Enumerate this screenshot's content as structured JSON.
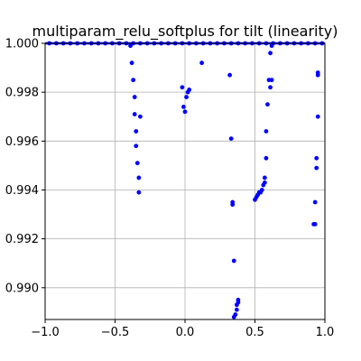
{
  "chart_data": {
    "type": "scatter",
    "title": "multiparam_relu_softplus for tilt (linearity)",
    "xlabel": "",
    "ylabel": "",
    "xlim": [
      -1.0,
      1.0
    ],
    "ylim": [
      0.9887,
      1.0
    ],
    "xticks": [
      -1.0,
      -0.5,
      0.0,
      0.5,
      1.0
    ],
    "xtick_labels": [
      "−1.0",
      "−0.5",
      "0.0",
      "0.5",
      "1.0"
    ],
    "yticks": [
      0.99,
      0.992,
      0.994,
      0.996,
      0.998,
      1.0
    ],
    "ytick_labels": [
      "0.990",
      "0.992",
      "0.994",
      "0.996",
      "0.998",
      "1.000"
    ],
    "grid": true,
    "marker_color": "#0000ff",
    "series": [
      {
        "x": [
          -0.97,
          -0.92,
          -0.87,
          -0.82,
          -0.77,
          -0.72,
          -0.67,
          -0.62,
          -0.57,
          -0.52,
          -0.47,
          -0.42,
          -0.37,
          -0.32,
          -0.27,
          -0.22,
          -0.17,
          -0.12,
          -0.07,
          -0.02,
          0.03,
          0.08,
          0.13,
          0.18,
          0.23,
          0.28,
          0.33,
          0.38,
          0.43,
          0.48,
          0.53,
          0.58,
          0.63,
          0.68,
          0.73,
          0.78,
          0.83,
          0.88,
          0.93,
          0.98,
          -0.39,
          -0.38,
          -0.37,
          -0.36,
          -0.36,
          -0.35,
          -0.35,
          -0.34,
          -0.33,
          -0.33,
          -0.32,
          -0.02,
          -0.01,
          0.0,
          0.01,
          0.02,
          0.03,
          0.12,
          0.32,
          0.33,
          0.34,
          0.34,
          0.35,
          0.35,
          0.36,
          0.37,
          0.37,
          0.38,
          0.38,
          0.5,
          0.51,
          0.52,
          0.53,
          0.54,
          0.55,
          0.56,
          0.57,
          0.57,
          0.58,
          0.58,
          0.59,
          0.6,
          0.61,
          0.61,
          0.62,
          0.62,
          0.92,
          0.93,
          0.93,
          0.94,
          0.94,
          0.95,
          0.95,
          0.95
        ],
        "y": [
          1.0,
          1.0,
          1.0,
          1.0,
          1.0,
          1.0,
          1.0,
          1.0,
          1.0,
          1.0,
          1.0,
          1.0,
          1.0,
          1.0,
          1.0,
          1.0,
          1.0,
          1.0,
          1.0,
          1.0,
          1.0,
          1.0,
          1.0,
          1.0,
          1.0,
          1.0,
          1.0,
          1.0,
          1.0,
          1.0,
          1.0,
          1.0,
          1.0,
          1.0,
          1.0,
          1.0,
          1.0,
          1.0,
          1.0,
          1.0,
          0.9999,
          0.9992,
          0.9985,
          0.9978,
          0.9971,
          0.9964,
          0.9958,
          0.9951,
          0.9945,
          0.9939,
          0.997,
          0.9982,
          0.9974,
          0.9972,
          0.9978,
          0.998,
          0.9981,
          0.9992,
          0.9987,
          0.9961,
          0.9935,
          0.9934,
          0.9911,
          0.9888,
          0.9889,
          0.9891,
          0.9893,
          0.9894,
          0.9895,
          0.9936,
          0.9937,
          0.9938,
          0.9939,
          0.9939,
          0.994,
          0.9942,
          0.9943,
          0.9945,
          0.9953,
          0.9964,
          0.9975,
          0.9985,
          0.9982,
          0.9996,
          0.9999,
          0.9985,
          0.9926,
          0.9926,
          0.9935,
          0.9949,
          0.9953,
          0.997,
          0.9987,
          0.9988
        ]
      }
    ]
  }
}
